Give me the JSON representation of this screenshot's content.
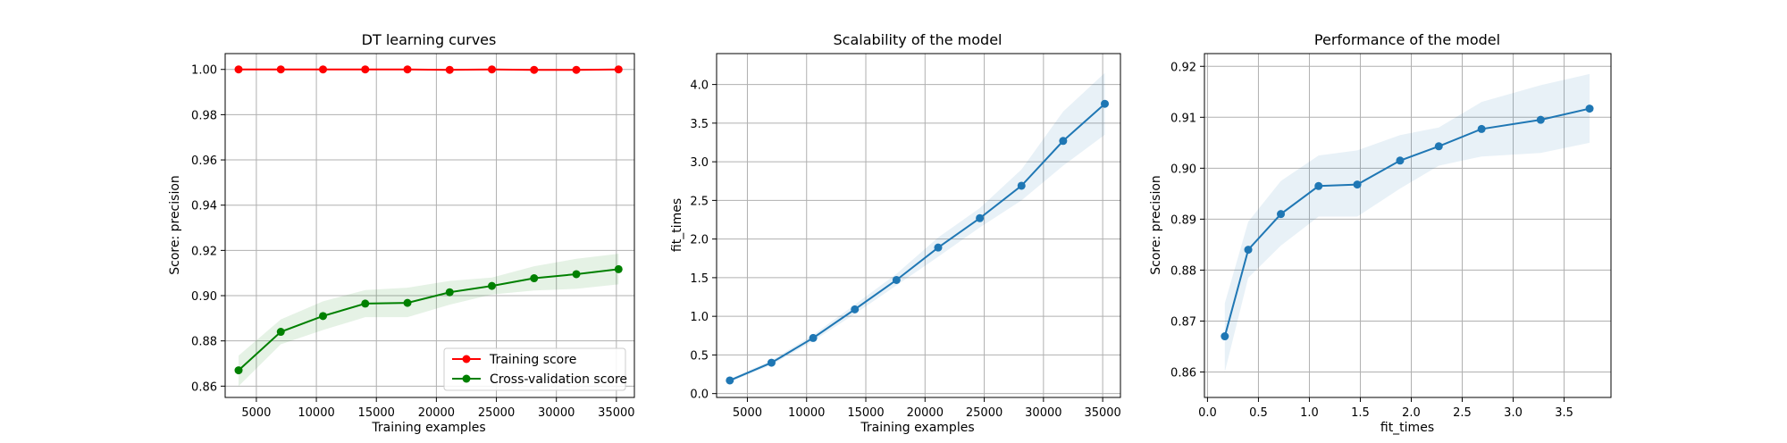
{
  "colors": {
    "training": "#ff0000",
    "cv": "#008000",
    "model": "#1f77b4",
    "grid": "#b0b0b0"
  },
  "chart_data": [
    {
      "type": "line",
      "title": "DT learning curves",
      "xlabel": "Training examples",
      "ylabel": "Score: precision",
      "xlim": [
        2400,
        36500
      ],
      "ylim": [
        0.855,
        1.007
      ],
      "xticks": [
        5000,
        10000,
        15000,
        20000,
        25000,
        30000,
        35000
      ],
      "yticks": [
        0.86,
        0.88,
        0.9,
        0.92,
        0.94,
        0.96,
        0.98,
        1.0
      ],
      "ytick_decimals": 2,
      "grid": true,
      "legend_position": "lower-right",
      "x": [
        3518,
        7036,
        10554,
        14072,
        17590,
        21108,
        24626,
        28144,
        31662,
        35180
      ],
      "series": [
        {
          "name": "Training score",
          "color": "#ff0000",
          "values": [
            1.0,
            1.0,
            1.0,
            1.0,
            1.0,
            0.9998,
            1.0,
            0.9998,
            0.9998,
            1.0
          ],
          "band_low": [
            0.9998,
            0.9998,
            0.9998,
            0.9998,
            0.9998,
            0.9995,
            0.9998,
            0.9995,
            0.9995,
            0.9998
          ],
          "band_high": [
            1.0,
            1.0,
            1.0,
            1.0,
            1.0,
            1.0,
            1.0,
            1.0,
            1.0,
            1.0
          ]
        },
        {
          "name": "Cross-validation score",
          "color": "#008000",
          "values": [
            0.867,
            0.884,
            0.891,
            0.8965,
            0.8968,
            0.9015,
            0.9043,
            0.9077,
            0.9095,
            0.9117
          ],
          "band_low": [
            0.86,
            0.8785,
            0.8848,
            0.8905,
            0.8905,
            0.896,
            0.9005,
            0.9023,
            0.903,
            0.905
          ],
          "band_high": [
            0.8735,
            0.8895,
            0.8975,
            0.9025,
            0.9035,
            0.9065,
            0.908,
            0.913,
            0.9163,
            0.9185
          ]
        }
      ]
    },
    {
      "type": "line",
      "title": "Scalability of the model",
      "xlabel": "Training examples",
      "ylabel": "fit_times",
      "xlim": [
        2400,
        36500
      ],
      "ylim": [
        -0.05,
        4.4
      ],
      "xticks": [
        5000,
        10000,
        15000,
        20000,
        25000,
        30000,
        35000
      ],
      "yticks": [
        0.0,
        0.5,
        1.0,
        1.5,
        2.0,
        2.5,
        3.0,
        3.5,
        4.0
      ],
      "ytick_decimals": 1,
      "grid": true,
      "x": [
        3518,
        7036,
        10554,
        14072,
        17590,
        21108,
        24626,
        28144,
        31662,
        35180
      ],
      "series": [
        {
          "name": "",
          "color": "#1f77b4",
          "values": [
            0.17,
            0.4,
            0.72,
            1.09,
            1.47,
            1.89,
            2.27,
            2.69,
            3.27,
            3.75
          ],
          "band_low": [
            0.15,
            0.37,
            0.68,
            1.03,
            1.4,
            1.77,
            2.15,
            2.5,
            2.95,
            3.35
          ],
          "band_high": [
            0.19,
            0.43,
            0.76,
            1.15,
            1.55,
            2.02,
            2.4,
            2.9,
            3.65,
            4.15
          ]
        }
      ]
    },
    {
      "type": "line",
      "title": "Performance of the model",
      "xlabel": "fit_times",
      "ylabel": "Score: precision",
      "xlim": [
        -0.03,
        3.96
      ],
      "ylim": [
        0.855,
        0.9225
      ],
      "xticks": [
        0.0,
        0.5,
        1.0,
        1.5,
        2.0,
        2.5,
        3.0,
        3.5
      ],
      "xtick_decimals": 1,
      "yticks": [
        0.86,
        0.87,
        0.88,
        0.89,
        0.9,
        0.91,
        0.92
      ],
      "ytick_decimals": 2,
      "grid": true,
      "x": [
        0.17,
        0.4,
        0.72,
        1.09,
        1.47,
        1.89,
        2.27,
        2.69,
        3.27,
        3.75
      ],
      "series": [
        {
          "name": "",
          "color": "#1f77b4",
          "values": [
            0.867,
            0.884,
            0.891,
            0.8965,
            0.8968,
            0.9015,
            0.9043,
            0.9077,
            0.9095,
            0.9117
          ],
          "band_low": [
            0.86,
            0.8785,
            0.8848,
            0.8905,
            0.8905,
            0.896,
            0.9005,
            0.9023,
            0.903,
            0.905
          ],
          "band_high": [
            0.8735,
            0.8895,
            0.8975,
            0.9025,
            0.9035,
            0.9065,
            0.908,
            0.913,
            0.9163,
            0.9185
          ]
        }
      ]
    }
  ]
}
